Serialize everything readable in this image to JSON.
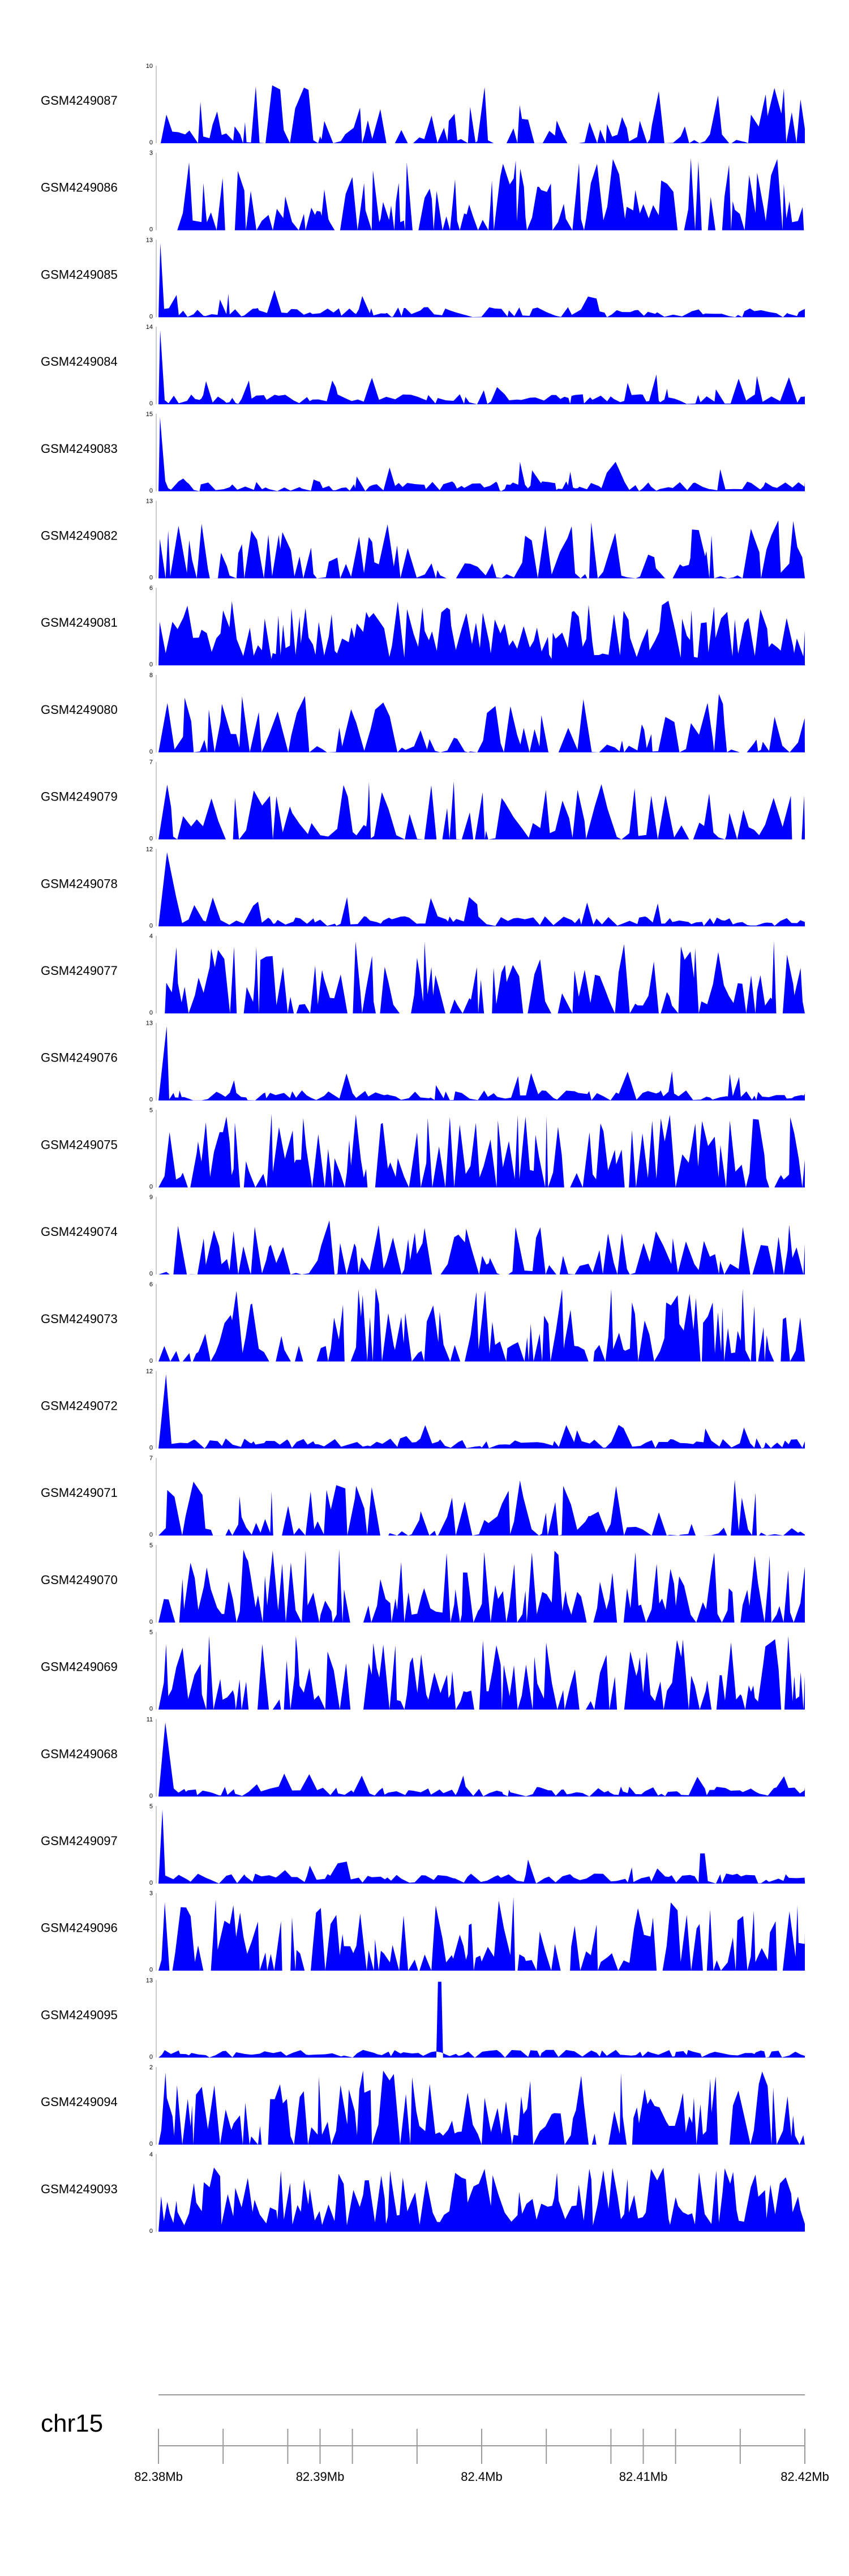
{
  "chart_data": {
    "type": "area",
    "color": "#0000ff",
    "tracks": [
      {
        "name": "GSM4249087",
        "ymax": 10,
        "seed": 87,
        "style": "normal"
      },
      {
        "name": "GSM4249086",
        "ymax": 3,
        "seed": 86,
        "style": "spiky"
      },
      {
        "name": "GSM4249085",
        "ymax": 13,
        "seed": 85,
        "style": "lowstart"
      },
      {
        "name": "GSM4249084",
        "ymax": 14,
        "seed": 84,
        "style": "lowstart"
      },
      {
        "name": "GSM4249083",
        "ymax": 15,
        "seed": 83,
        "style": "lowstart"
      },
      {
        "name": "GSM4249082",
        "ymax": 13,
        "seed": 82,
        "style": "normal"
      },
      {
        "name": "GSM4249081",
        "ymax": 6,
        "seed": 81,
        "style": "dense"
      },
      {
        "name": "GSM4249080",
        "ymax": 8,
        "seed": 80,
        "style": "normal"
      },
      {
        "name": "GSM4249079",
        "ymax": 7,
        "seed": 79,
        "style": "normal"
      },
      {
        "name": "GSM4249078",
        "ymax": 12,
        "seed": 78,
        "style": "lowstart"
      },
      {
        "name": "GSM4249077",
        "ymax": 4,
        "seed": 77,
        "style": "spiky"
      },
      {
        "name": "GSM4249076",
        "ymax": 13,
        "seed": 76,
        "style": "lowstart"
      },
      {
        "name": "GSM4249075",
        "ymax": 5,
        "seed": 75,
        "style": "spiky"
      },
      {
        "name": "GSM4249074",
        "ymax": 9,
        "seed": 74,
        "style": "normal"
      },
      {
        "name": "GSM4249073",
        "ymax": 6,
        "seed": 73,
        "style": "spiky"
      },
      {
        "name": "GSM4249072",
        "ymax": 12,
        "seed": 72,
        "style": "lowstart"
      },
      {
        "name": "GSM4249071",
        "ymax": 7,
        "seed": 71,
        "style": "normal"
      },
      {
        "name": "GSM4249070",
        "ymax": 5,
        "seed": 70,
        "style": "spiky"
      },
      {
        "name": "GSM4249069",
        "ymax": 5,
        "seed": 69,
        "style": "spiky"
      },
      {
        "name": "GSM4249068",
        "ymax": 11,
        "seed": 68,
        "style": "lowstart"
      },
      {
        "name": "GSM4249097",
        "ymax": 5,
        "seed": 97,
        "style": "lowstart"
      },
      {
        "name": "GSM4249096",
        "ymax": 3,
        "seed": 96,
        "style": "spiky"
      },
      {
        "name": "GSM4249095",
        "ymax": 13,
        "seed": 95,
        "style": "peak",
        "peak_x": 82.3974
      },
      {
        "name": "GSM4249094",
        "ymax": 2,
        "seed": 94,
        "style": "spiky"
      },
      {
        "name": "GSM4249093",
        "ymax": 4,
        "seed": 93,
        "style": "dense"
      }
    ],
    "ymin": 0,
    "x_range": [
      82.38,
      82.42
    ],
    "chromosome": "chr15",
    "axis_ticks": [
      82.38,
      82.384,
      82.388,
      82.39,
      82.392,
      82.396,
      82.4,
      82.404,
      82.408,
      82.41,
      82.412,
      82.416,
      82.42
    ],
    "axis_labels": [
      {
        "value": 82.38,
        "label": "82.38Mb"
      },
      {
        "value": 82.39,
        "label": "82.39Mb"
      },
      {
        "value": 82.4,
        "label": "82.4Mb"
      },
      {
        "value": 82.41,
        "label": "82.41Mb"
      },
      {
        "value": 82.42,
        "label": "82.42Mb"
      }
    ]
  }
}
